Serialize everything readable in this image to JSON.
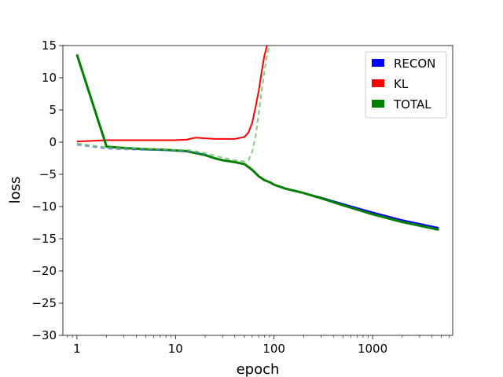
{
  "chart_data": {
    "type": "line",
    "xlabel": "epoch",
    "ylabel": "loss",
    "xscale": "log",
    "xlim": [
      0.72,
      6500
    ],
    "ylim": [
      -30,
      15
    ],
    "xticks": [
      {
        "v": 1,
        "label": "1"
      },
      {
        "v": 10,
        "label": "10"
      },
      {
        "v": 100,
        "label": "100"
      },
      {
        "v": 1000,
        "label": "1000"
      }
    ],
    "yticks": [
      15,
      10,
      5,
      0,
      -5,
      -10,
      -15,
      -20,
      -25,
      -30
    ],
    "legend_placement": "top-right",
    "legend": [
      {
        "label": "RECON",
        "color": "#0000ff"
      },
      {
        "label": "KL",
        "color": "#ff0000"
      },
      {
        "label": "TOTAL",
        "color": "#008000"
      }
    ],
    "series": [
      {
        "name": "RECON",
        "color": "#0000ff",
        "style": "solid",
        "x": [
          1,
          2,
          3,
          5,
          8,
          10,
          13,
          16,
          20,
          25,
          30,
          40,
          50,
          60,
          70,
          80,
          90,
          100,
          130,
          200,
          300,
          500,
          1000,
          2000,
          4700
        ],
        "y": [
          13.6,
          -0.7,
          -0.9,
          -1.1,
          -1.2,
          -1.3,
          -1.4,
          -1.7,
          -2.0,
          -2.5,
          -2.8,
          -3.1,
          -3.4,
          -4.3,
          -5.3,
          -5.9,
          -6.2,
          -6.6,
          -7.2,
          -7.9,
          -8.6,
          -9.6,
          -10.9,
          -12.1,
          -13.3
        ]
      },
      {
        "name": "KL",
        "color": "#ff0000",
        "style": "solid",
        "x": [
          1,
          2,
          3,
          5,
          8,
          10,
          13,
          16,
          20,
          25,
          30,
          40,
          50,
          55,
          60,
          65,
          70,
          75,
          80,
          85
        ],
        "y": [
          0.1,
          0.3,
          0.3,
          0.3,
          0.3,
          0.3,
          0.4,
          0.7,
          0.6,
          0.5,
          0.5,
          0.5,
          0.8,
          1.5,
          3.0,
          5.5,
          8.0,
          11.0,
          13.5,
          15.0
        ]
      },
      {
        "name": "TOTAL",
        "color": "#008000",
        "style": "solid",
        "x": [
          1,
          2,
          3,
          5,
          8,
          10,
          13,
          16,
          20,
          25,
          30,
          40,
          50,
          60,
          70,
          80,
          90,
          100,
          130,
          200,
          300,
          500,
          1000,
          2000,
          4700
        ],
        "y": [
          13.6,
          -0.7,
          -0.9,
          -1.1,
          -1.2,
          -1.3,
          -1.4,
          -1.7,
          -2.0,
          -2.5,
          -2.8,
          -3.1,
          -3.4,
          -4.3,
          -5.3,
          -5.9,
          -6.2,
          -6.6,
          -7.2,
          -7.9,
          -8.7,
          -9.8,
          -11.2,
          -12.4,
          -13.6
        ]
      },
      {
        "color": "#4a6fd0",
        "style": "dashed",
        "x": [
          1,
          2,
          3,
          5,
          8,
          10,
          15,
          20
        ],
        "y": [
          -0.4,
          -1.0,
          -1.1,
          -1.2,
          -1.25,
          -1.3,
          -1.5,
          -1.9
        ]
      },
      {
        "color": "#5cb85c",
        "style": "dashed",
        "x": [
          1,
          2,
          3,
          5,
          8,
          10,
          13,
          16,
          20,
          25,
          30,
          40,
          50,
          55,
          60,
          65,
          70,
          75,
          80,
          85,
          90
        ],
        "y": [
          -0.2,
          -0.8,
          -0.9,
          -1.0,
          -1.1,
          -1.2,
          -1.2,
          -1.4,
          -1.7,
          -2.1,
          -2.4,
          -2.8,
          -3.0,
          -2.8,
          -1.5,
          1.0,
          4.5,
          8.0,
          11.0,
          13.5,
          15.0
        ]
      }
    ]
  }
}
